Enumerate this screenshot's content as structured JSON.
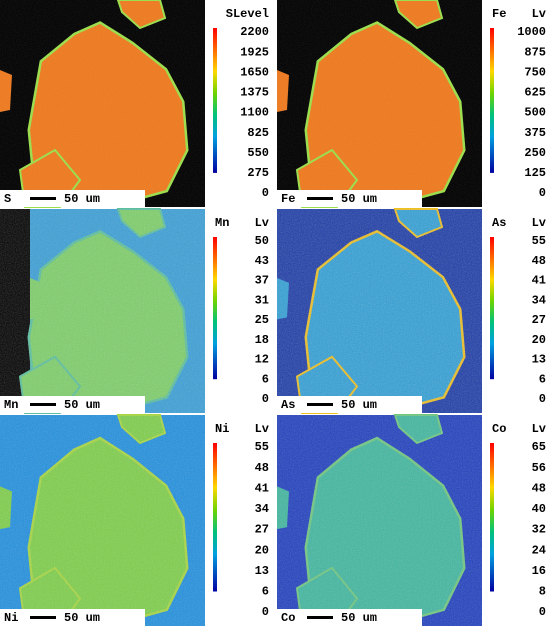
{
  "panels": [
    {
      "header": [
        "SLevel"
      ],
      "ticks": [
        "2200",
        "1925",
        "1650",
        "1375",
        "1100",
        "825",
        "550",
        "275",
        "0"
      ],
      "label": "S",
      "scale": "50 um"
    },
    {
      "header": [
        "Fe",
        "Lv"
      ],
      "ticks": [
        "1000",
        "875",
        "750",
        "625",
        "500",
        "375",
        "250",
        "125",
        "0"
      ],
      "label": "Fe",
      "scale": "50 um"
    },
    {
      "header": [
        "Mn",
        "Lv"
      ],
      "ticks": [
        "50",
        "43",
        "37",
        "31",
        "25",
        "18",
        "12",
        "6",
        "0"
      ],
      "label": "Mn",
      "scale": "50 um"
    },
    {
      "header": [
        "As",
        "Lv"
      ],
      "ticks": [
        "55",
        "48",
        "41",
        "34",
        "27",
        "20",
        "13",
        "6",
        "0"
      ],
      "label": "As",
      "scale": "50 um"
    },
    {
      "header": [
        "Ni",
        "Lv"
      ],
      "ticks": [
        "55",
        "48",
        "41",
        "34",
        "27",
        "20",
        "13",
        "6",
        "0"
      ],
      "label": "Ni",
      "scale": "50 um"
    },
    {
      "header": [
        "Co",
        "Lv"
      ],
      "ticks": [
        "65",
        "56",
        "48",
        "40",
        "32",
        "24",
        "16",
        "8",
        "0"
      ],
      "label": "Co",
      "scale": "50 um"
    }
  ]
}
